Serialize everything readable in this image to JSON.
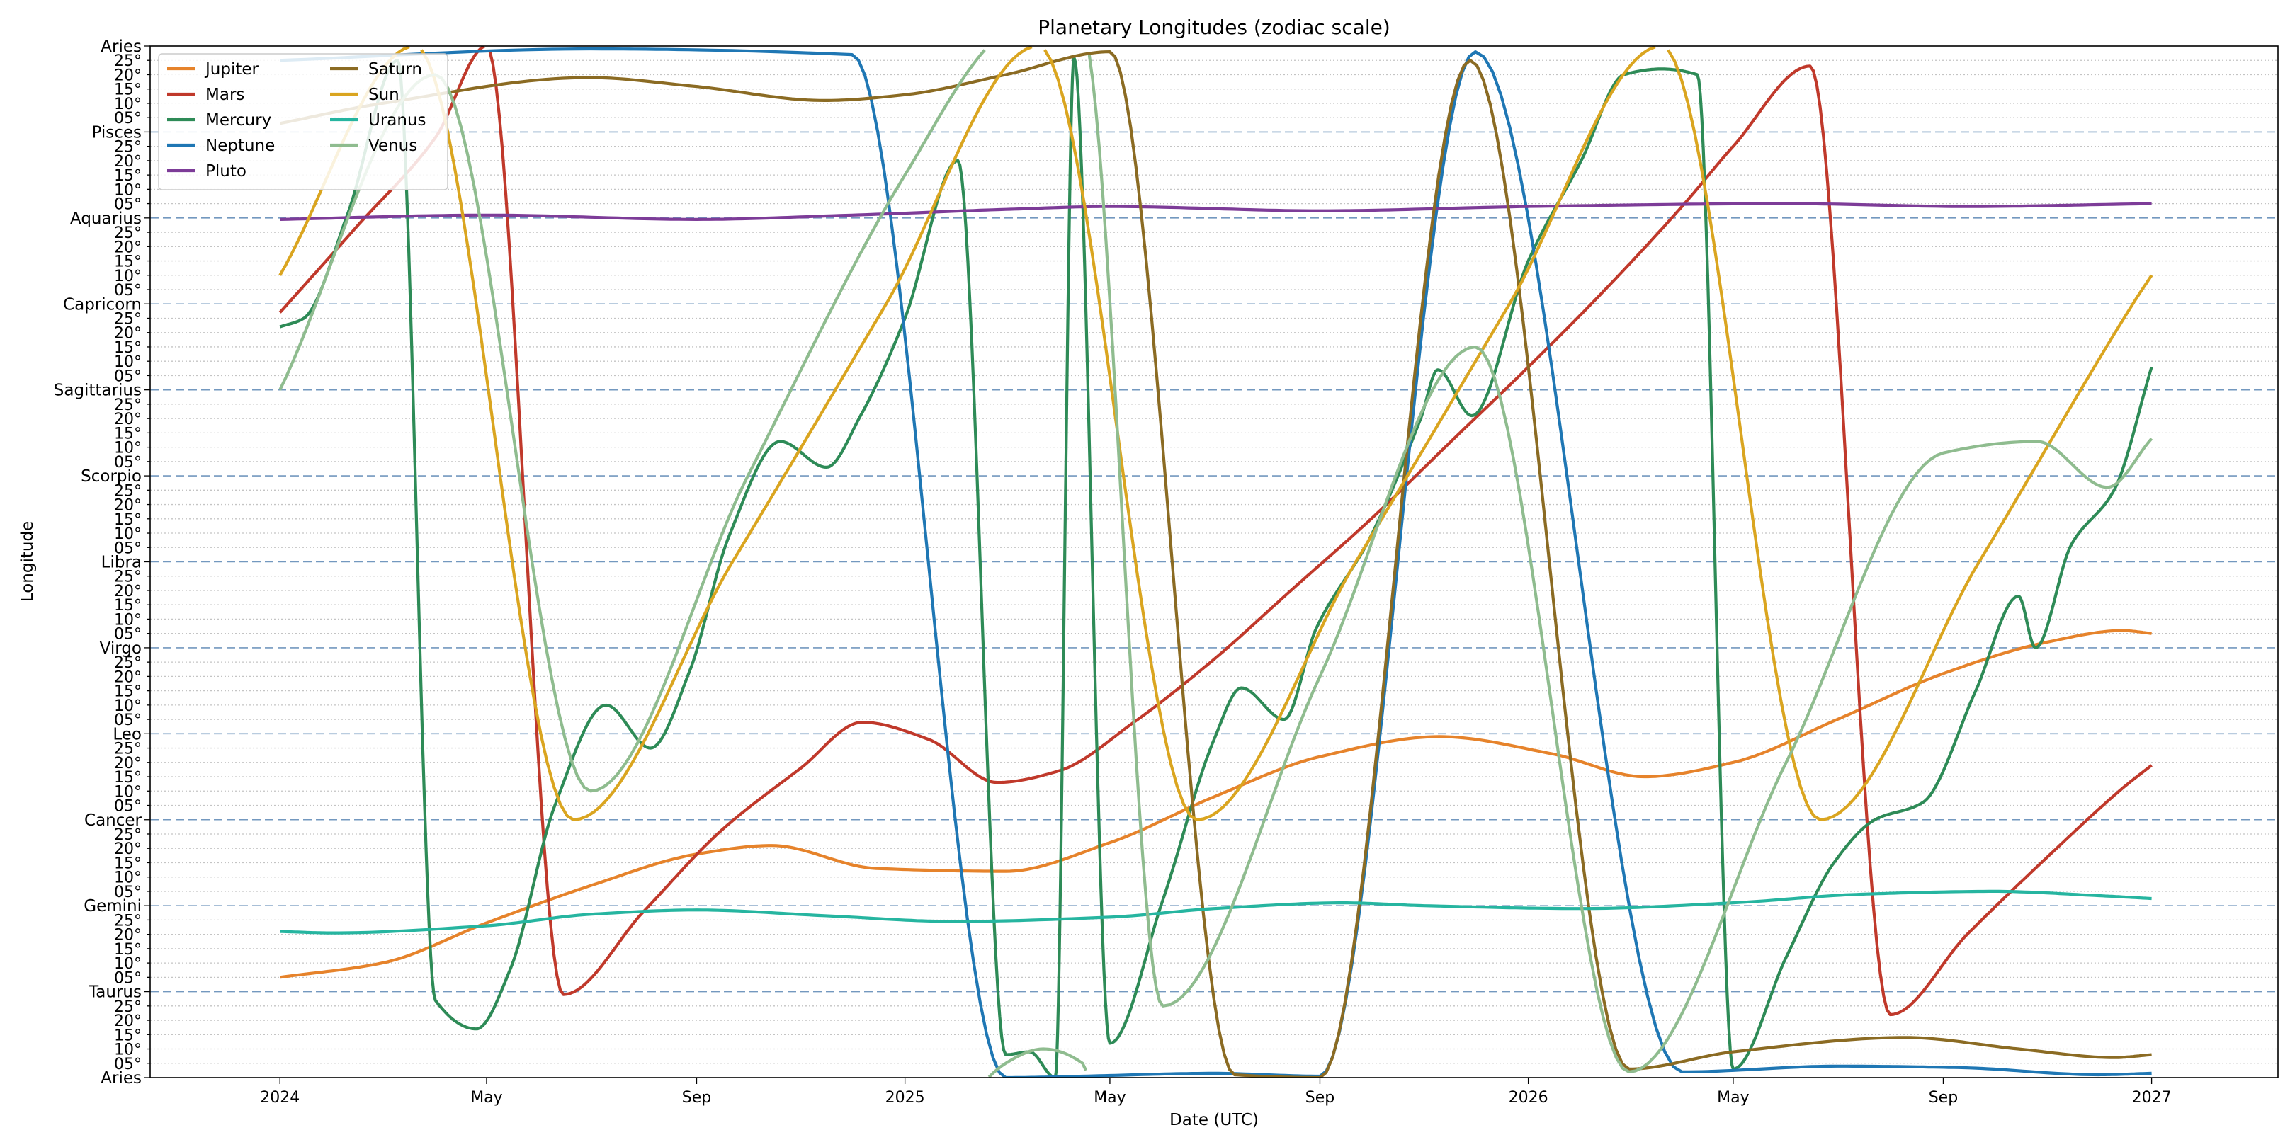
{
  "chart_data": {
    "type": "line",
    "title": "Planetary Longitudes (zodiac scale)",
    "xlabel": "Date (UTC)",
    "ylabel": "Longitude",
    "xlim": [
      "2023-10-17",
      "2027-03-16"
    ],
    "ylim": [
      0,
      360
    ],
    "x_ticks": [
      {
        "date": "2024-01-01",
        "label": "2024"
      },
      {
        "date": "2024-05-01",
        "label": "May"
      },
      {
        "date": "2024-09-01",
        "label": "Sep"
      },
      {
        "date": "2025-01-01",
        "label": "2025"
      },
      {
        "date": "2025-05-01",
        "label": "May"
      },
      {
        "date": "2025-09-01",
        "label": "Sep"
      },
      {
        "date": "2026-01-01",
        "label": "2026"
      },
      {
        "date": "2026-05-01",
        "label": "May"
      },
      {
        "date": "2026-09-01",
        "label": "Sep"
      },
      {
        "date": "2027-01-01",
        "label": "2027"
      }
    ],
    "sign_labels": [
      "Aries",
      "Taurus",
      "Gemini",
      "Cancer",
      "Leo",
      "Virgo",
      "Libra",
      "Scorpio",
      "Sagittarius",
      "Capricorn",
      "Aquarius",
      "Pisces",
      "Aries"
    ],
    "minor_tick_labels": [
      "05°",
      "10°",
      "15°",
      "20°",
      "25°"
    ],
    "grid": true,
    "legend": {
      "position": "top-left",
      "columns": 2
    },
    "series": [
      {
        "name": "Jupiter",
        "color": "#e6832b",
        "x": [
          "2024-01-01",
          "2024-03-01",
          "2024-05-01",
          "2024-07-01",
          "2024-09-01",
          "2024-10-15",
          "2024-12-15",
          "2025-03-01",
          "2025-05-01",
          "2025-07-01",
          "2025-09-01",
          "2025-11-10",
          "2026-01-15",
          "2026-03-10",
          "2026-05-01",
          "2026-07-01",
          "2026-09-01",
          "2026-11-01",
          "2026-12-15",
          "2027-01-01"
        ],
        "y": [
          35,
          40,
          54,
          67,
          78,
          81,
          73,
          72,
          82,
          98,
          112,
          119,
          113,
          105,
          110,
          125,
          141,
          152,
          156,
          155
        ]
      },
      {
        "name": "Mars",
        "color": "#c0392b",
        "x": [
          "2024-01-01",
          "2024-02-15",
          "2024-04-01",
          "2024-05-01",
          "2024-06-15",
          "2024-08-01",
          "2024-09-15",
          "2024-11-01",
          "2024-12-07",
          "2025-01-15",
          "2025-02-24",
          "2025-04-01",
          "2025-05-15",
          "2025-07-01",
          "2025-08-15",
          "2025-10-01",
          "2025-11-15",
          "2026-01-01",
          "2026-02-15",
          "2026-04-01",
          "2026-05-01",
          "2026-06-15",
          "2026-08-01",
          "2026-09-15",
          "2026-11-01",
          "2026-12-15",
          "2027-01-01"
        ],
        "y": [
          267,
          297,
          328,
          360,
          29,
          58,
          86,
          108,
          124,
          118,
          103,
          107,
          124,
          146,
          170,
          195,
          221,
          248,
          275,
          304,
          325,
          353,
          22,
          50,
          77,
          101,
          109
        ]
      },
      {
        "name": "Mercury",
        "color": "#2e8b57",
        "x": [
          "2024-01-01",
          "2024-01-15",
          "2024-02-10",
          "2024-03-10",
          "2024-04-01",
          "2024-04-25",
          "2024-05-15",
          "2024-06-10",
          "2024-07-10",
          "2024-08-05",
          "2024-08-28",
          "2024-09-20",
          "2024-10-20",
          "2024-11-16",
          "2024-12-06",
          "2025-01-01",
          "2025-02-01",
          "2025-03-01",
          "2025-03-15",
          "2025-03-30",
          "2025-04-10",
          "2025-05-01",
          "2025-06-01",
          "2025-07-01",
          "2025-07-17",
          "2025-08-11",
          "2025-08-30",
          "2025-09-30",
          "2025-10-30",
          "2025-11-09",
          "2025-11-29",
          "2026-01-01",
          "2026-02-01",
          "2026-02-26",
          "2026-03-20",
          "2026-04-10",
          "2026-05-01",
          "2026-06-01",
          "2026-06-29",
          "2026-07-23",
          "2026-08-20",
          "2026-09-20",
          "2026-10-15",
          "2026-10-25",
          "2026-11-15",
          "2026-12-10",
          "2027-01-01"
        ],
        "y": [
          262,
          265,
          302,
          355,
          27,
          17,
          38,
          95,
          130,
          115,
          142,
          189,
          222,
          213,
          231,
          265,
          320,
          8,
          9,
          0,
          356,
          12,
          62,
          118,
          136,
          125,
          157,
          188,
          230,
          247,
          231,
          285,
          320,
          350,
          352,
          350,
          3,
          42,
          75,
          90,
          96,
          135,
          168,
          150,
          186,
          205,
          248
        ]
      },
      {
        "name": "Neptune",
        "color": "#1f77b4",
        "x": [
          "2024-01-01",
          "2024-07-01",
          "2024-12-01",
          "2025-03-01",
          "2025-04-15",
          "2025-07-01",
          "2025-09-01",
          "2025-12-01",
          "2026-04-01",
          "2026-07-01",
          "2026-09-10",
          "2026-12-01",
          "2027-01-01"
        ],
        "y": [
          355,
          359,
          357,
          0,
          0.5,
          1.5,
          0.5,
          358,
          2,
          4,
          3.5,
          1,
          1.5
        ]
      },
      {
        "name": "Pluto",
        "color": "#7d3c98",
        "x": [
          "2024-01-01",
          "2024-05-01",
          "2024-09-01",
          "2024-12-01",
          "2025-03-01",
          "2025-05-01",
          "2025-09-01",
          "2026-01-01",
          "2026-06-01",
          "2026-09-15",
          "2027-01-01"
        ],
        "y": [
          299.5,
          301,
          299.5,
          301,
          303,
          304,
          302.5,
          304,
          305,
          304,
          305
        ]
      },
      {
        "name": "Saturn",
        "color": "#8b6b23",
        "x": [
          "2024-01-01",
          "2024-03-01",
          "2024-06-30",
          "2024-08-30",
          "2024-11-15",
          "2025-01-01",
          "2025-03-01",
          "2025-05-01",
          "2025-07-13",
          "2025-09-01",
          "2025-11-28",
          "2026-03-01",
          "2026-05-01",
          "2026-08-10",
          "2026-10-15",
          "2026-12-10",
          "2027-01-01"
        ],
        "y": [
          333,
          340,
          349,
          346,
          341,
          343,
          350,
          358,
          1,
          0,
          355,
          3,
          9,
          14,
          10,
          7,
          8
        ]
      },
      {
        "name": "Sun",
        "color": "#daa520",
        "x": [
          "2024-01-01",
          "2024-03-20",
          "2024-06-21",
          "2024-09-22",
          "2024-12-21",
          "2025-03-20",
          "2025-06-21",
          "2025-09-22",
          "2025-12-21",
          "2026-03-20",
          "2026-06-21",
          "2026-09-22",
          "2026-12-21",
          "2027-01-01"
        ],
        "y": [
          280,
          360,
          90,
          180,
          270,
          360,
          90,
          180,
          270,
          360,
          90,
          180,
          270,
          280
        ]
      },
      {
        "name": "Uranus",
        "color": "#26b5a0",
        "x": [
          "2024-01-01",
          "2024-02-01",
          "2024-05-01",
          "2024-07-01",
          "2024-09-01",
          "2024-11-15",
          "2025-01-30",
          "2025-05-01",
          "2025-07-01",
          "2025-09-15",
          "2025-11-01",
          "2026-02-01",
          "2026-05-01",
          "2026-07-15",
          "2026-10-01",
          "2026-12-01",
          "2027-01-01"
        ],
        "y": [
          51,
          50.5,
          53,
          57,
          58.5,
          56.5,
          54.5,
          56,
          59,
          61,
          60,
          59,
          61,
          64,
          65,
          63.5,
          62.5
        ]
      },
      {
        "name": "Venus",
        "color": "#8fbc8f",
        "x": [
          "2024-01-01",
          "2024-04-01",
          "2024-07-01",
          "2024-10-01",
          "2025-01-01",
          "2025-03-01",
          "2025-03-23",
          "2025-04-15",
          "2025-06-01",
          "2025-09-01",
          "2025-12-01",
          "2026-03-01",
          "2026-06-01",
          "2026-09-01",
          "2026-10-26",
          "2026-12-06",
          "2027-01-01"
        ],
        "y": [
          240,
          350,
          100,
          210,
          315,
          365,
          370,
          365,
          25,
          140,
          255,
          2,
          110,
          218,
          222,
          206,
          223
        ]
      }
    ]
  }
}
